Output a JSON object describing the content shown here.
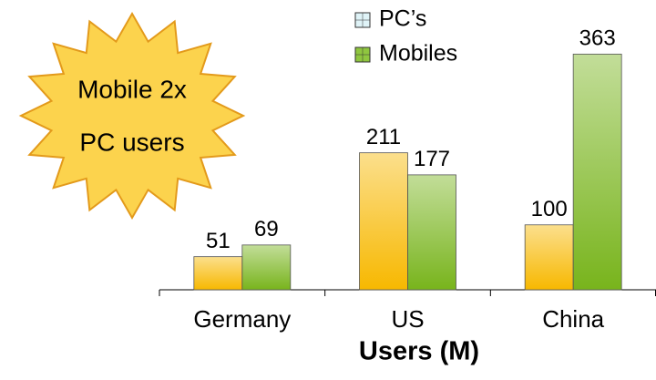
{
  "chart_data": {
    "type": "bar",
    "categories": [
      "Germany",
      "US",
      "China"
    ],
    "series": [
      {
        "name": "PC’s",
        "color": "#f7b800",
        "legend_color": "#dff3f7",
        "values": [
          51,
          211,
          100
        ]
      },
      {
        "name": "Mobiles",
        "color": "#78b41c",
        "legend_color": "#8fc63f",
        "values": [
          69,
          177,
          363
        ]
      }
    ],
    "xlabel": "Users (M)",
    "annotation": [
      "Mobile 2x",
      "PC users"
    ],
    "ylim": [
      0,
      400
    ],
    "legend": "top"
  }
}
